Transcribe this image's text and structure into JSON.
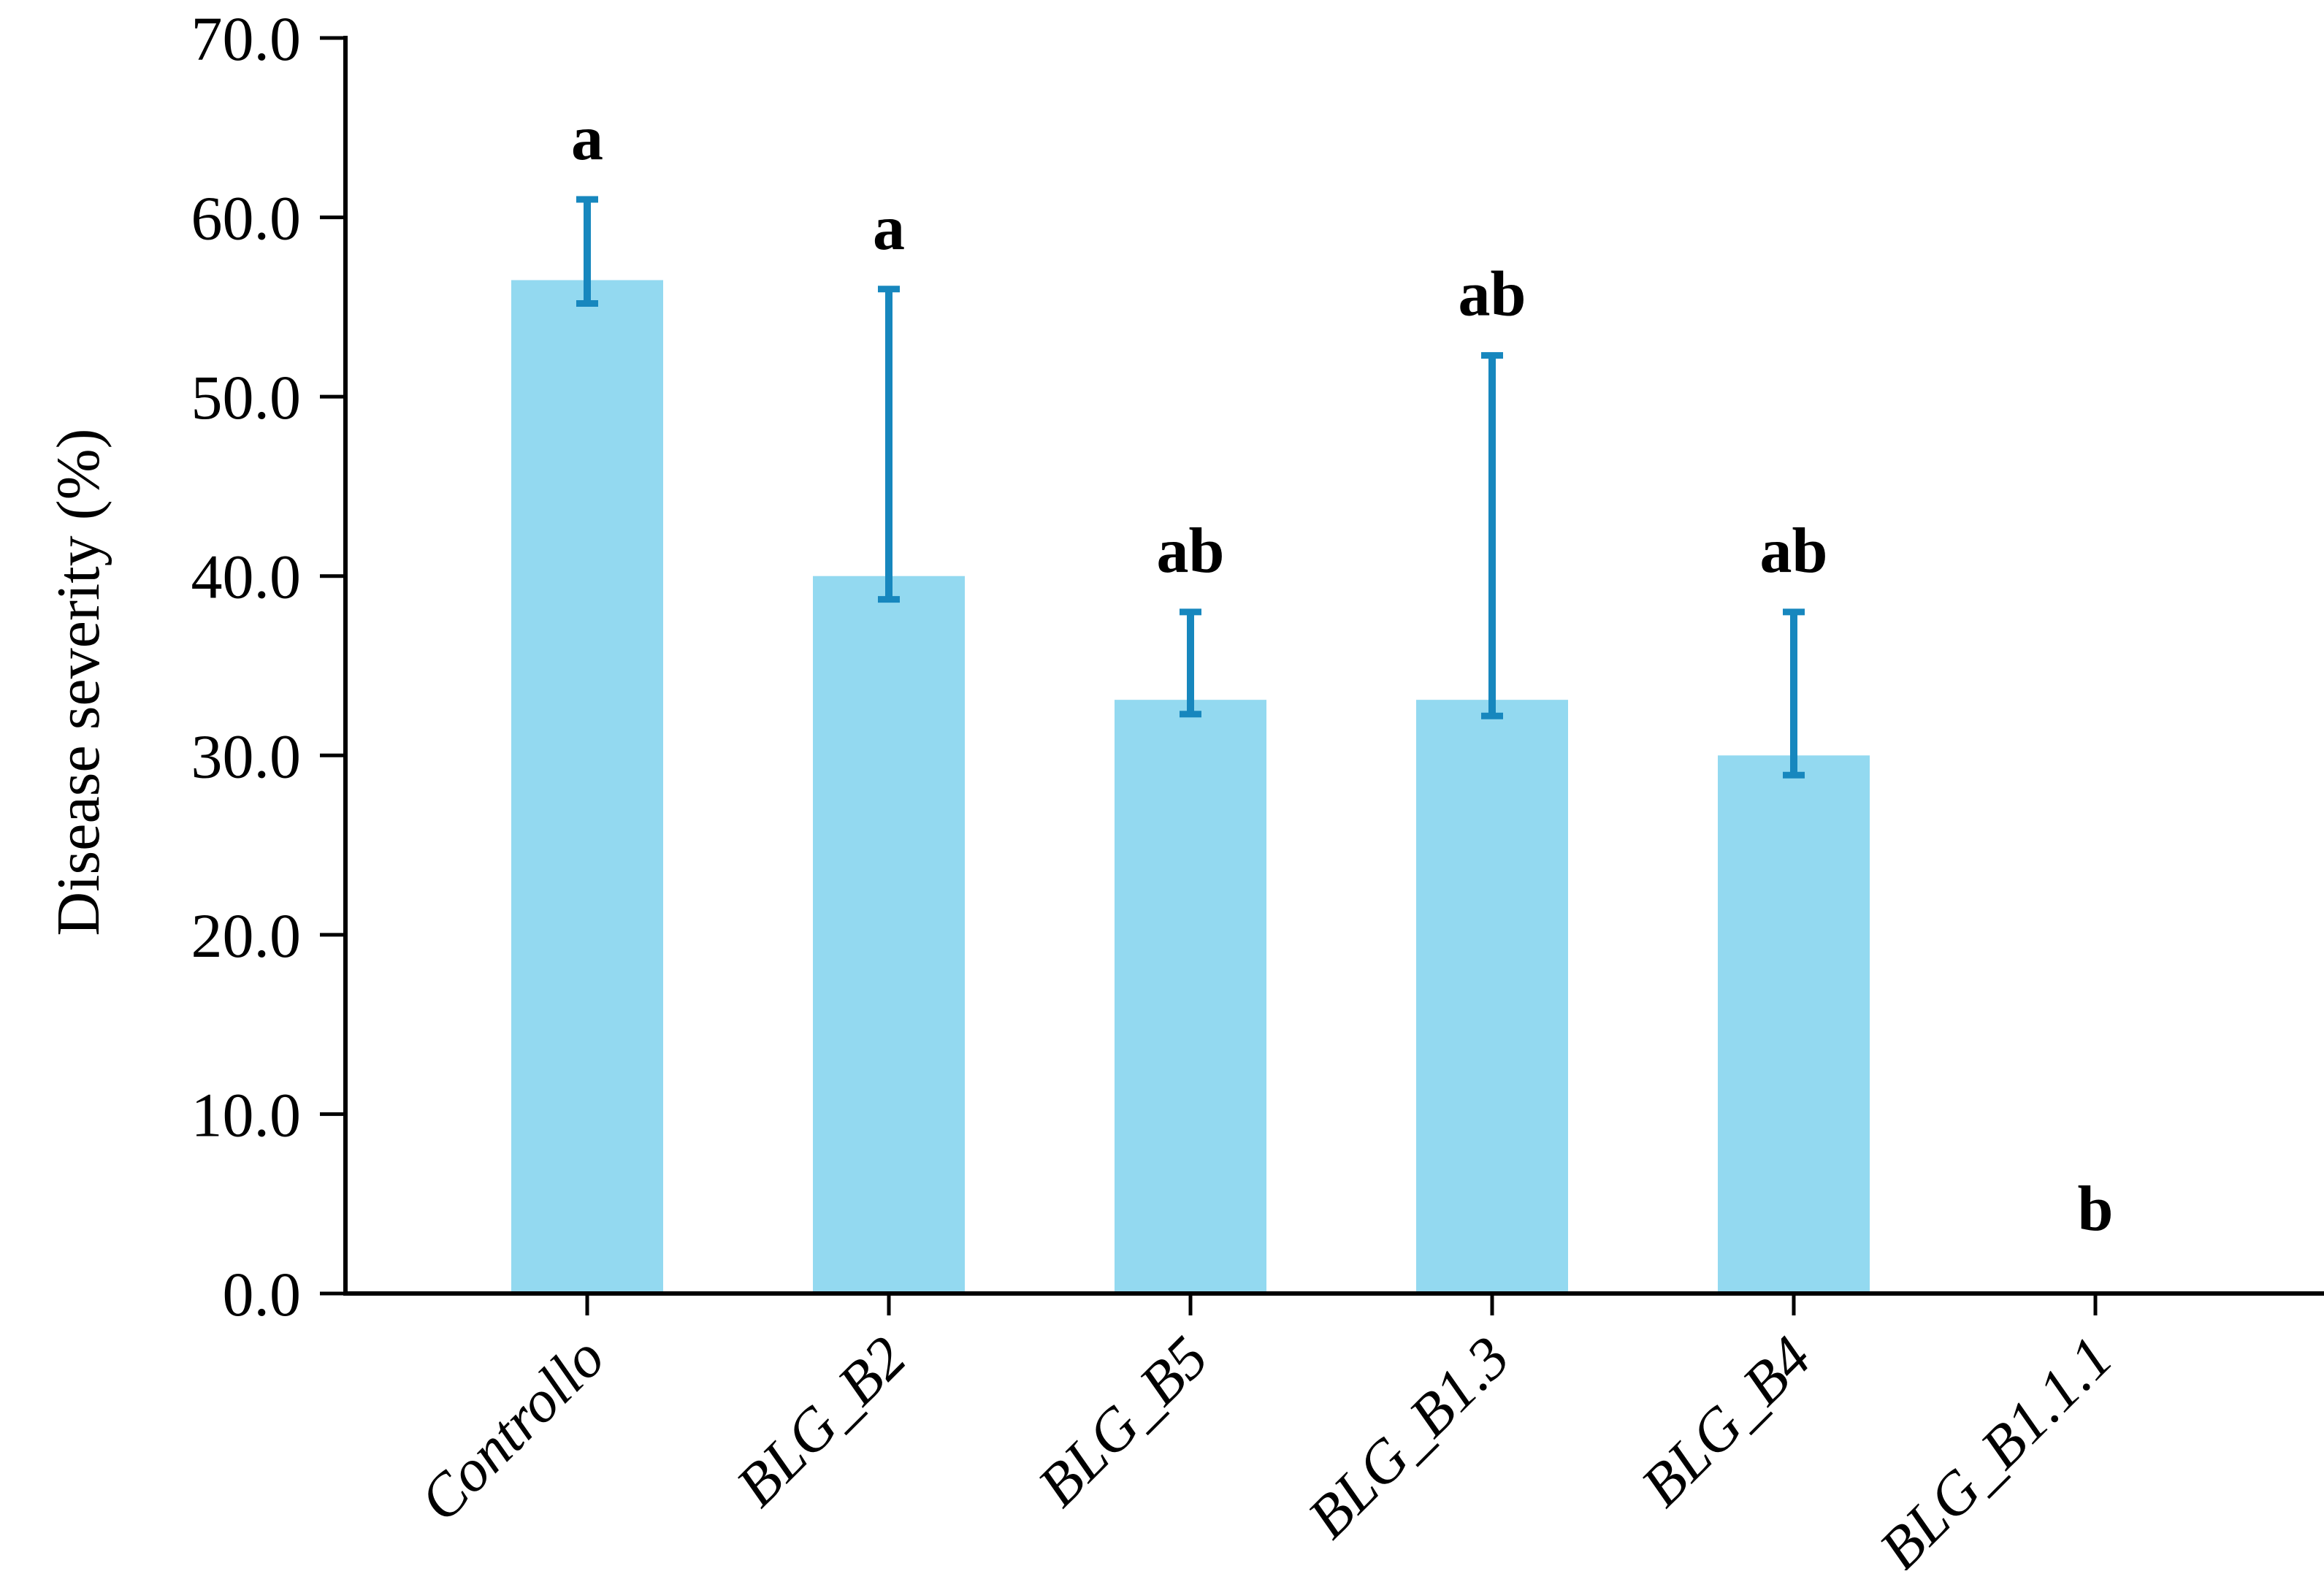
{
  "figure": {
    "background": "#ffffff"
  },
  "chart_data": {
    "type": "bar",
    "title": "",
    "xlabel": "",
    "ylabel": "Disease severity (%)",
    "ylim": [
      0,
      70
    ],
    "ytick_interval": 10,
    "ytick_labels": [
      "0.0",
      "10.0",
      "20.0",
      "30.0",
      "40.0",
      "50.0",
      "60.0",
      "70.0"
    ],
    "grid": false,
    "legend": false,
    "bar_color": "#93D9F0",
    "error_bar_color": "#1787BE",
    "axis_color": "#000000",
    "categories": [
      "Controllo",
      "BLG_B2",
      "BLG_B5",
      "BLG_B1.3",
      "BLG_B4",
      "BLG_B1.1.1"
    ],
    "values": [
      56.5,
      40.0,
      33.1,
      33.1,
      30.0,
      0.0
    ],
    "error_bars": [
      {
        "low": 55.2,
        "high": 61.0
      },
      {
        "low": 38.7,
        "high": 56.0
      },
      {
        "low": 32.3,
        "high": 38.0
      },
      {
        "low": 32.2,
        "high": 52.3
      },
      {
        "low": 28.9,
        "high": 38.0
      },
      null
    ],
    "significance_letters": [
      "a",
      "a",
      "ab",
      "ab",
      "ab",
      "b"
    ]
  }
}
